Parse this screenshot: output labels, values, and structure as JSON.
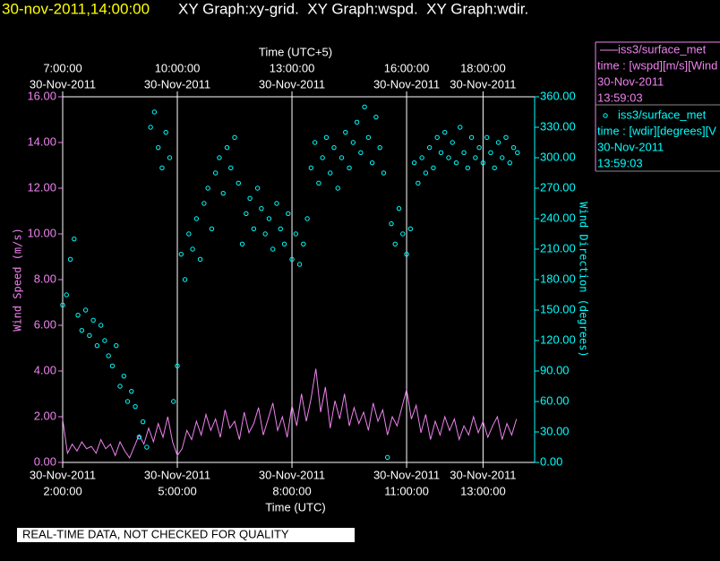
{
  "chart_data": {
    "type": "line",
    "title_time": "30-nov-2011,14:00:00",
    "title": "XY Graph:xy-grid.  XY Graph:wspd.  XY Graph:wdir.",
    "xlabel": "Time (UTC)",
    "x2label": "Time (UTC+5)",
    "ylabel": "Wind Speed (m/s)",
    "y2label": "Wind Direction (degrees)",
    "footer": "REAL-TIME DATA, NOT CHECKED FOR QUALITY",
    "xlim": [
      2,
      14.35
    ],
    "xticks": [
      {
        "value": 2,
        "label": "2:00:00",
        "date": "30-Nov-2011"
      },
      {
        "value": 5,
        "label": "5:00:00",
        "date": "30-Nov-2011"
      },
      {
        "value": 8,
        "label": "8:00:00",
        "date": "30-Nov-2011"
      },
      {
        "value": 11,
        "label": "11:00:00",
        "date": "30-Nov-2011"
      },
      {
        "value": 13,
        "label": "13:00:00",
        "date": "30-Nov-2011"
      }
    ],
    "x2ticks": [
      {
        "value": 2,
        "label": "7:00:00",
        "date": "30-Nov-2011"
      },
      {
        "value": 5,
        "label": "10:00:00",
        "date": "30-Nov-2011"
      },
      {
        "value": 8,
        "label": "13:00:00",
        "date": "30-Nov-2011"
      },
      {
        "value": 11,
        "label": "16:00:00",
        "date": "30-Nov-2011"
      },
      {
        "value": 13,
        "label": "18:00:00",
        "date": "30-Nov-2011"
      }
    ],
    "ylim": [
      0,
      16
    ],
    "yticks": [
      {
        "value": 0,
        "label": "0.00"
      },
      {
        "value": 2,
        "label": "2.00"
      },
      {
        "value": 4,
        "label": "4.00"
      },
      {
        "value": 6,
        "label": "6.00"
      },
      {
        "value": 8,
        "label": "8.00"
      },
      {
        "value": 10,
        "label": "10.00"
      },
      {
        "value": 12,
        "label": "12.00"
      },
      {
        "value": 14,
        "label": "14.00"
      },
      {
        "value": 16,
        "label": "16.00"
      }
    ],
    "y2lim": [
      0,
      360
    ],
    "y2ticks": [
      {
        "value": 0,
        "label": "0.00"
      },
      {
        "value": 30,
        "label": "30.00"
      },
      {
        "value": 60,
        "label": "60.00"
      },
      {
        "value": 90,
        "label": "90.00"
      },
      {
        "value": 120,
        "label": "120.00"
      },
      {
        "value": 150,
        "label": "150.00"
      },
      {
        "value": 180,
        "label": "180.00"
      },
      {
        "value": 210,
        "label": "210.00"
      },
      {
        "value": 240,
        "label": "240.00"
      },
      {
        "value": 270,
        "label": "270.00"
      },
      {
        "value": 300,
        "label": "300.00"
      },
      {
        "value": 330,
        "label": "330.00"
      },
      {
        "value": 360,
        "label": "360.00"
      }
    ],
    "grid": true,
    "series": [
      {
        "name": "iss3/surface_met",
        "type": "line",
        "color": "#ee82ee",
        "axis": "y",
        "legend_lines": [
          "time : [wspd][m/s][Wind",
          "30-Nov-2011",
          "13:59:03"
        ],
        "x": [
          2,
          2.125,
          2.25,
          2.375,
          2.5,
          2.625,
          2.75,
          2.875,
          3,
          3.125,
          3.25,
          3.375,
          3.5,
          3.625,
          3.75,
          3.875,
          4,
          4.125,
          4.25,
          4.375,
          4.5,
          4.625,
          4.75,
          4.875,
          5,
          5.125,
          5.25,
          5.375,
          5.5,
          5.625,
          5.75,
          5.875,
          6,
          6.125,
          6.25,
          6.375,
          6.5,
          6.625,
          6.75,
          6.875,
          7,
          7.125,
          7.25,
          7.375,
          7.5,
          7.625,
          7.75,
          7.875,
          8,
          8.125,
          8.25,
          8.375,
          8.5,
          8.625,
          8.75,
          8.875,
          9,
          9.125,
          9.25,
          9.375,
          9.5,
          9.625,
          9.75,
          9.875,
          10,
          10.125,
          10.25,
          10.375,
          10.5,
          10.625,
          10.75,
          10.875,
          11,
          11.125,
          11.25,
          11.375,
          11.5,
          11.625,
          11.75,
          11.875,
          12,
          12.125,
          12.25,
          12.375,
          12.5,
          12.625,
          12.75,
          12.875,
          13,
          13.125,
          13.25,
          13.375,
          13.5,
          13.625,
          13.75,
          13.875
        ],
        "values": [
          1.9,
          0.4,
          0.8,
          0.5,
          0.9,
          0.6,
          0.7,
          0.4,
          1.0,
          0.6,
          0.8,
          0.3,
          0.9,
          0.5,
          0.2,
          0.7,
          1.2,
          0.8,
          1.5,
          0.9,
          1.7,
          1.1,
          2.0,
          0.9,
          0.3,
          0.6,
          1.4,
          1.0,
          1.8,
          1.2,
          2.1,
          1.4,
          1.9,
          1.1,
          2.3,
          1.5,
          1.8,
          1.0,
          2.2,
          1.3,
          1.7,
          2.4,
          1.2,
          1.9,
          2.6,
          1.4,
          2.0,
          1.1,
          2.5,
          1.6,
          3.0,
          1.8,
          2.8,
          4.1,
          2.2,
          3.3,
          1.5,
          2.7,
          1.9,
          3.0,
          1.6,
          2.4,
          1.7,
          2.2,
          1.4,
          2.6,
          1.8,
          2.3,
          1.2,
          2.0,
          1.6,
          2.4,
          3.2,
          1.9,
          2.5,
          1.3,
          2.1,
          1.0,
          1.8,
          1.2,
          2.0,
          1.4,
          1.9,
          1.0,
          1.6,
          1.2,
          2.0,
          1.3,
          1.8,
          1.1,
          1.6,
          2.0,
          1.0,
          1.7,
          1.2,
          1.9
        ]
      },
      {
        "name": "iss3/surface_met",
        "type": "scatter",
        "color": "#00ffff",
        "axis": "y2",
        "legend_lines": [
          "time : [wdir][degrees][V",
          "30-Nov-2011",
          "13:59:03"
        ],
        "x": [
          2,
          2.1,
          2.2,
          2.3,
          2.4,
          2.5,
          2.6,
          2.7,
          2.8,
          2.9,
          3,
          3.1,
          3.2,
          3.3,
          3.4,
          3.5,
          3.6,
          3.7,
          3.8,
          3.9,
          4,
          4.1,
          4.2,
          4.3,
          4.4,
          4.5,
          4.6,
          4.7,
          4.8,
          4.9,
          5,
          5.1,
          5.2,
          5.3,
          5.4,
          5.5,
          5.6,
          5.7,
          5.8,
          5.9,
          6,
          6.1,
          6.2,
          6.3,
          6.4,
          6.5,
          6.6,
          6.7,
          6.8,
          6.9,
          7,
          7.1,
          7.2,
          7.3,
          7.4,
          7.5,
          7.6,
          7.7,
          7.8,
          7.9,
          8,
          8.1,
          8.2,
          8.3,
          8.4,
          8.5,
          8.6,
          8.7,
          8.8,
          8.9,
          9,
          9.1,
          9.2,
          9.3,
          9.4,
          9.5,
          9.6,
          9.7,
          9.8,
          9.9,
          10,
          10.1,
          10.2,
          10.3,
          10.4,
          10.5,
          10.6,
          10.7,
          10.8,
          10.9,
          11,
          11.1,
          11.2,
          11.3,
          11.4,
          11.5,
          11.6,
          11.7,
          11.8,
          11.9,
          12,
          12.1,
          12.2,
          12.3,
          12.4,
          12.5,
          12.6,
          12.7,
          12.8,
          12.9,
          13,
          13.1,
          13.2,
          13.3,
          13.4,
          13.5,
          13.6,
          13.7,
          13.8,
          13.9
        ],
        "values": [
          155,
          165,
          200,
          220,
          145,
          130,
          150,
          125,
          140,
          115,
          135,
          120,
          105,
          95,
          115,
          75,
          85,
          60,
          70,
          55,
          25,
          40,
          15,
          330,
          345,
          310,
          290,
          325,
          300,
          60,
          95,
          205,
          180,
          225,
          210,
          240,
          200,
          255,
          270,
          230,
          285,
          300,
          265,
          310,
          290,
          320,
          275,
          215,
          245,
          260,
          230,
          270,
          250,
          225,
          240,
          210,
          255,
          230,
          215,
          245,
          200,
          225,
          195,
          215,
          240,
          290,
          315,
          275,
          300,
          320,
          285,
          310,
          270,
          300,
          325,
          290,
          315,
          335,
          305,
          350,
          320,
          295,
          340,
          310,
          285,
          5,
          235,
          215,
          250,
          225,
          205,
          230,
          295,
          275,
          300,
          285,
          310,
          290,
          320,
          305,
          325,
          300,
          315,
          295,
          330,
          305,
          290,
          320,
          300,
          310,
          295,
          320,
          305,
          290,
          315,
          300,
          320,
          295,
          310,
          305
        ]
      }
    ]
  }
}
